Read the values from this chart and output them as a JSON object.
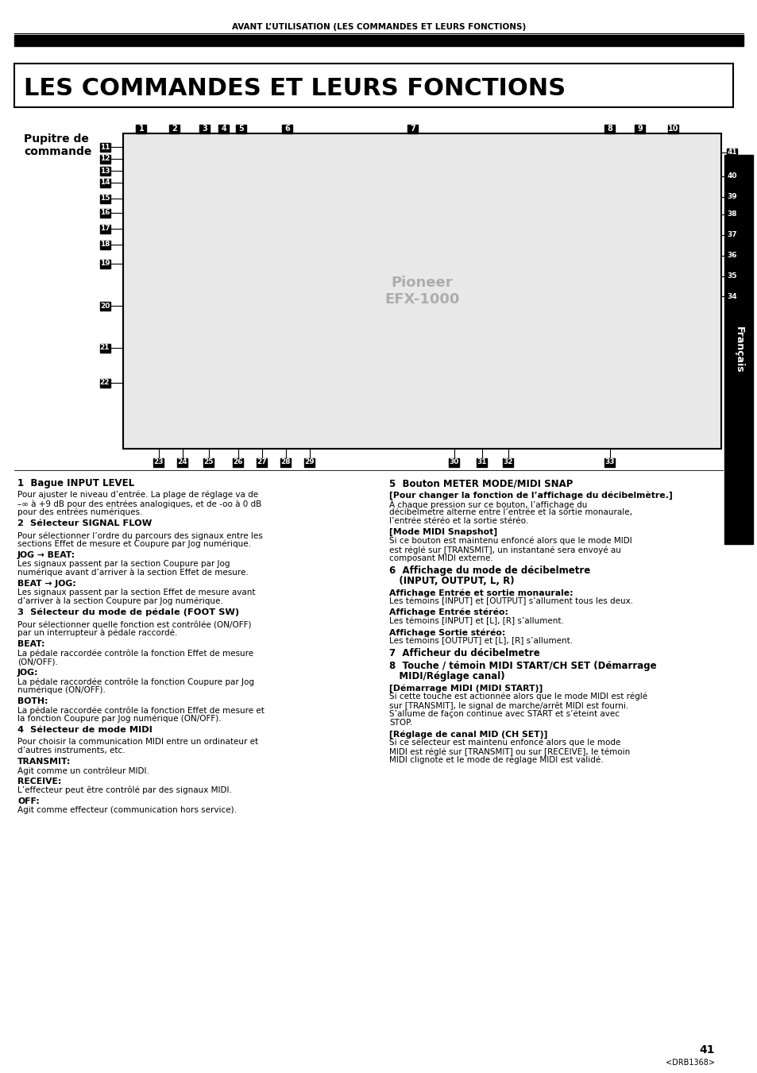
{
  "page_header": "AVANT L’UTILISATION (LES COMMANDES ET LEURS FONCTIONS)",
  "title": "LES COMMANDES ET LEURS FONCTIONS",
  "subtitle_left": "Pupitre de\ncommande",
  "sidebar_text": "Français",
  "page_number": "41",
  "page_code": "<DRB1368>",
  "left_column": [
    {
      "type": "heading1",
      "text": "1  Bague INPUT LEVEL"
    },
    {
      "type": "body",
      "text": "Pour ajuster le niveau d’entrée. La plage de réglage va de\n–∞ à +9 dB pour des entrées analogiques, et de -oo à 0 dB\npour des entrées numériques."
    },
    {
      "type": "heading2",
      "text": "2  Sélecteur SIGNAL FLOW"
    },
    {
      "type": "body",
      "text": "Pour sélectionner l’ordre du parcours des signaux entre les\nsections Effet de mesure et Coupure par Jog numérique."
    },
    {
      "type": "bold_label",
      "text": "JOG → BEAT:"
    },
    {
      "type": "body",
      "text": "Les signaux passent par la section Coupure par Jog\nnumérique avant d’arriver à la section Effet de mesure."
    },
    {
      "type": "bold_label",
      "text": "BEAT → JOG:"
    },
    {
      "type": "body",
      "text": "Les signaux passent par la section Effet de mesure avant\nd’arriver à la section Coupure par Jog numérique."
    },
    {
      "type": "heading2",
      "text": "3  Sélecteur du mode de pédale (FOOT SW)"
    },
    {
      "type": "body",
      "text": "Pour sélectionner quelle fonction est contrôlée (ON/OFF)\npar un interrupteur à pédale raccordé."
    },
    {
      "type": "bold_label",
      "text": "BEAT:"
    },
    {
      "type": "body",
      "text": "La pédale raccordée contrôle la fonction Effet de mesure\n(ON/OFF)."
    },
    {
      "type": "bold_label",
      "text": "JOG:"
    },
    {
      "type": "body",
      "text": "La pédale raccordée contrôle la fonction Coupure par Jog\nnumérique (ON/OFF)."
    },
    {
      "type": "bold_label",
      "text": "BOTH:"
    },
    {
      "type": "body",
      "text": "La pédale raccordée contrôle la fonction Effet de mesure et\nla fonction Coupure par Jog numérique (ON/OFF)."
    },
    {
      "type": "heading2",
      "text": "4  Sélecteur de mode MIDI"
    },
    {
      "type": "body",
      "text": "Pour choisir la communication MIDI entre un ordinateur et\nd’autres instruments, etc."
    },
    {
      "type": "bold_label",
      "text": "TRANSMIT:"
    },
    {
      "type": "body",
      "text": "Agit comme un contrôleur MIDI."
    },
    {
      "type": "bold_label",
      "text": "RECEIVE:"
    },
    {
      "type": "body",
      "text": "L’effecteur peut être contrôlé par des signaux MIDI."
    },
    {
      "type": "bold_label",
      "text": "OFF:"
    },
    {
      "type": "body",
      "text": "Agit comme effecteur (communication hors service)."
    }
  ],
  "right_column": [
    {
      "type": "heading1",
      "text": "5  Bouton METER MODE/MIDI SNAP"
    },
    {
      "type": "bold_bracket",
      "text": "[Pour changer la fonction de l’affichage du décibelmètre.]"
    },
    {
      "type": "body",
      "text": "À chaque pression sur ce bouton, l’affichage du\ndécibelmetre alterne entre l’entrée et la sortie monaurale,\nl’entrée stéréo et la sortie stéréo."
    },
    {
      "type": "bold_bracket",
      "text": "[Mode MIDI Snapshot]"
    },
    {
      "type": "body",
      "text": "Si ce bouton est maintenu enfoncé alors que le mode MIDI\nest réglé sur [TRANSMIT], un instantané sera envoyé au\ncomposant MIDI externe."
    },
    {
      "type": "heading1",
      "text": "6  Affichage du mode de décibelmetre\n   (INPUT, OUTPUT, L, R)"
    },
    {
      "type": "bold_label",
      "text": "Affichage Entrée et sortie monaurale:"
    },
    {
      "type": "body",
      "text": "Les témoins [INPUT] et [OUTPUT] s’allument tous les deux."
    },
    {
      "type": "bold_label",
      "text": "Affichage Entrée stéréo:"
    },
    {
      "type": "body",
      "text": "Les témoins [INPUT] et [L], [R] s’allument."
    },
    {
      "type": "bold_label",
      "text": "Affichage Sortie stéréo:"
    },
    {
      "type": "body",
      "text": "Les témoins [OUTPUT] et [L], [R] s’allument."
    },
    {
      "type": "heading1",
      "text": "7  Afficheur du décibelmetre"
    },
    {
      "type": "heading1",
      "text": "8  Touche / témoin MIDI START/CH SET (Démarrage\n   MIDI/Réglage canal)"
    },
    {
      "type": "bold_bracket",
      "text": "[Démarrage MIDI (MIDI START)]"
    },
    {
      "type": "body",
      "text": "Si cette touche est actionnée alors que le mode MIDI est réglé\nsur [TRANSMIT], le signal de marche/arrêt MIDI est fourni.\nS’allume de façon continue avec START et s’éteint avec\nSTOP."
    },
    {
      "type": "bold_bracket",
      "text": "[Réglage de canal MID (CH SET)]"
    },
    {
      "type": "body",
      "text": "Si ce sélecteur est maintenu enfoncé alors que le mode\nMIDI est réglé sur [TRANSMIT] ou sur [RECEIVE], le témoin\nMIDI clignote et le mode de réglage MIDI est validé."
    }
  ],
  "background_color": "#ffffff",
  "text_color": "#000000",
  "header_bar_color": "#000000",
  "title_box_color": "#000000",
  "sidebar_bg": "#000000",
  "sidebar_text_color": "#ffffff"
}
